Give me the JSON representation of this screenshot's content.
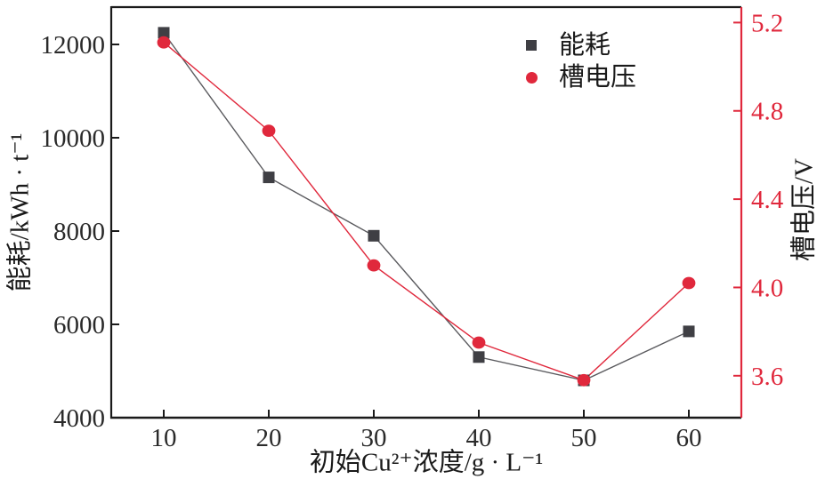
{
  "figure": {
    "background": "#ffffff",
    "ink": "#1a1a1a",
    "tick_label_color": "#2a2a2a",
    "accent_red": "#e0283c",
    "dark": "#3f3f44",
    "gray_line": "#5a5a5e"
  },
  "chart_data": {
    "type": "line",
    "x": [
      10,
      20,
      30,
      40,
      50,
      60
    ],
    "xtick_labels": [
      "10",
      "20",
      "30",
      "40",
      "50",
      "60"
    ],
    "series": [
      {
        "name": "能耗",
        "axis": "left",
        "marker": "square",
        "marker_color": "#3f3f44",
        "line_color": "#5a5a5e",
        "values": [
          12250,
          9150,
          7900,
          5300,
          4800,
          5850
        ]
      },
      {
        "name": "槽电压",
        "axis": "right",
        "marker": "circle",
        "marker_color": "#e0283c",
        "line_color": "#e0283c",
        "values": [
          5.11,
          4.71,
          4.1,
          3.75,
          3.58,
          4.02
        ]
      }
    ],
    "xlabel": "初始Cu²⁺浓度/g · L⁻¹",
    "ylabel_left": "能耗/kWh · t⁻¹",
    "ylabel_right": "槽电压/V",
    "xlim": [
      5,
      65
    ],
    "ylim_left": [
      4000,
      12800
    ],
    "ylim_right": [
      3.41,
      5.27
    ],
    "yticks_left": [
      4000,
      6000,
      8000,
      10000,
      12000
    ],
    "ytick_labels_left": [
      "4000",
      "6000",
      "8000",
      "10000",
      "12000"
    ],
    "yticks_right": [
      3.6,
      4.0,
      4.4,
      4.8,
      5.2
    ],
    "ytick_labels_right": [
      "3.6",
      "4.0",
      "4.4",
      "4.8",
      "5.2"
    ],
    "legend_position": "upper-right-inside",
    "grid": false,
    "tick_direction": "in"
  }
}
